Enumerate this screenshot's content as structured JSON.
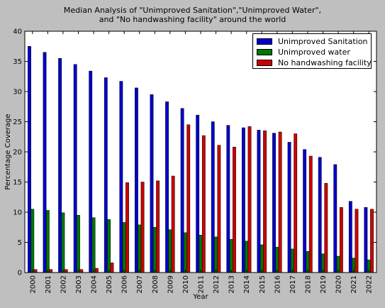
{
  "chart_data": {
    "type": "bar",
    "title_lines": [
      "Median Analysis of \"Unimproved Sanitation\",\"Unimproved Water\",",
      "and \"No handwashing facility\" around the world"
    ],
    "xlabel": "Year",
    "ylabel": "Percentage Coverage",
    "ylim": [
      0,
      40
    ],
    "yticks": [
      0,
      5,
      10,
      15,
      20,
      25,
      30,
      35,
      40
    ],
    "grid": false,
    "legend_position": "top-right",
    "categories": [
      "2000",
      "2001",
      "2002",
      "2003",
      "2004",
      "2005",
      "2006",
      "2007",
      "2008",
      "2009",
      "2010",
      "2011",
      "2012",
      "2013",
      "2014",
      "2015",
      "2016",
      "2017",
      "2018",
      "2019",
      "2020",
      "2021",
      "2022"
    ],
    "series": [
      {
        "name": "Unimproved Sanitation",
        "color": "#0000cc",
        "values": [
          37.5,
          36.5,
          35.5,
          34.5,
          33.4,
          32.3,
          31.7,
          30.6,
          29.5,
          28.3,
          27.2,
          26.1,
          25.0,
          24.4,
          24.0,
          23.6,
          23.1,
          21.6,
          20.4,
          19.1,
          17.9,
          11.8,
          10.8
        ]
      },
      {
        "name": "Unimproved water",
        "color": "#007700",
        "values": [
          10.5,
          10.3,
          9.9,
          9.5,
          9.1,
          8.8,
          8.3,
          7.9,
          7.5,
          7.1,
          6.6,
          6.2,
          5.9,
          5.5,
          5.2,
          4.6,
          4.2,
          3.9,
          3.5,
          3.1,
          2.7,
          2.4,
          2.1
        ]
      },
      {
        "name": "No handwashing facility",
        "color": "#cc0000",
        "values": [
          0.5,
          0.5,
          0.5,
          0.5,
          0.7,
          1.6,
          14.9,
          15.0,
          15.2,
          16.0,
          24.5,
          22.7,
          21.1,
          20.8,
          24.2,
          23.5,
          23.3,
          23.0,
          19.3,
          14.8,
          10.8,
          10.5,
          10.5
        ]
      }
    ]
  }
}
